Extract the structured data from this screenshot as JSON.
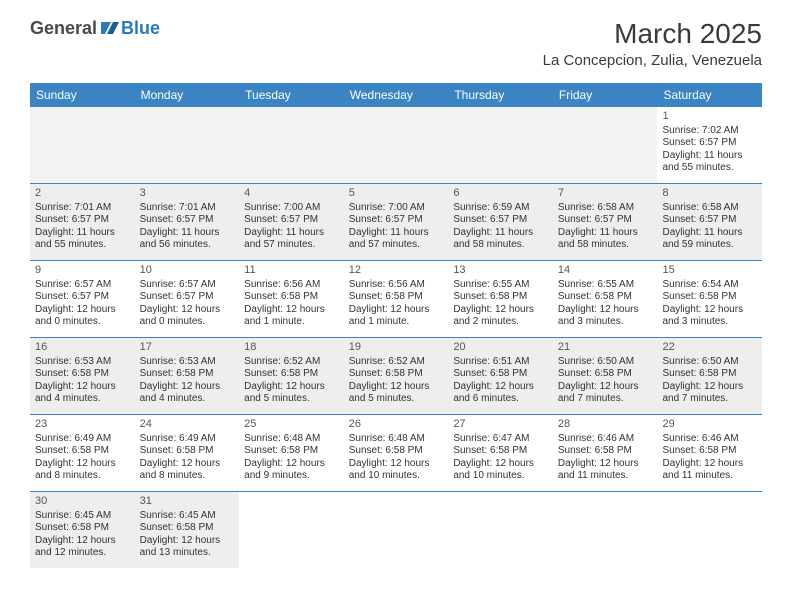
{
  "logo": {
    "part1": "General",
    "part2": "Blue"
  },
  "title": "March 2025",
  "location": "La Concepcion, Zulia, Venezuela",
  "colors": {
    "header_bg": "#3b84c4",
    "header_text": "#ffffff",
    "border": "#3b84c4",
    "empty_bg": "#f2f2f2",
    "shaded_bg": "#eeeeee",
    "text": "#333333",
    "logo_gray": "#4a4a4a",
    "logo_blue": "#2a7abf"
  },
  "dayHeaders": [
    "Sunday",
    "Monday",
    "Tuesday",
    "Wednesday",
    "Thursday",
    "Friday",
    "Saturday"
  ],
  "weeks": [
    [
      {
        "empty": true
      },
      {
        "empty": true
      },
      {
        "empty": true
      },
      {
        "empty": true
      },
      {
        "empty": true
      },
      {
        "empty": true
      },
      {
        "num": "1",
        "sunrise": "Sunrise: 7:02 AM",
        "sunset": "Sunset: 6:57 PM",
        "daylight": "Daylight: 11 hours and 55 minutes."
      }
    ],
    [
      {
        "num": "2",
        "shaded": true,
        "sunrise": "Sunrise: 7:01 AM",
        "sunset": "Sunset: 6:57 PM",
        "daylight": "Daylight: 11 hours and 55 minutes."
      },
      {
        "num": "3",
        "shaded": true,
        "sunrise": "Sunrise: 7:01 AM",
        "sunset": "Sunset: 6:57 PM",
        "daylight": "Daylight: 11 hours and 56 minutes."
      },
      {
        "num": "4",
        "shaded": true,
        "sunrise": "Sunrise: 7:00 AM",
        "sunset": "Sunset: 6:57 PM",
        "daylight": "Daylight: 11 hours and 57 minutes."
      },
      {
        "num": "5",
        "shaded": true,
        "sunrise": "Sunrise: 7:00 AM",
        "sunset": "Sunset: 6:57 PM",
        "daylight": "Daylight: 11 hours and 57 minutes."
      },
      {
        "num": "6",
        "shaded": true,
        "sunrise": "Sunrise: 6:59 AM",
        "sunset": "Sunset: 6:57 PM",
        "daylight": "Daylight: 11 hours and 58 minutes."
      },
      {
        "num": "7",
        "shaded": true,
        "sunrise": "Sunrise: 6:58 AM",
        "sunset": "Sunset: 6:57 PM",
        "daylight": "Daylight: 11 hours and 58 minutes."
      },
      {
        "num": "8",
        "shaded": true,
        "sunrise": "Sunrise: 6:58 AM",
        "sunset": "Sunset: 6:57 PM",
        "daylight": "Daylight: 11 hours and 59 minutes."
      }
    ],
    [
      {
        "num": "9",
        "sunrise": "Sunrise: 6:57 AM",
        "sunset": "Sunset: 6:57 PM",
        "daylight": "Daylight: 12 hours and 0 minutes."
      },
      {
        "num": "10",
        "sunrise": "Sunrise: 6:57 AM",
        "sunset": "Sunset: 6:57 PM",
        "daylight": "Daylight: 12 hours and 0 minutes."
      },
      {
        "num": "11",
        "sunrise": "Sunrise: 6:56 AM",
        "sunset": "Sunset: 6:58 PM",
        "daylight": "Daylight: 12 hours and 1 minute."
      },
      {
        "num": "12",
        "sunrise": "Sunrise: 6:56 AM",
        "sunset": "Sunset: 6:58 PM",
        "daylight": "Daylight: 12 hours and 1 minute."
      },
      {
        "num": "13",
        "sunrise": "Sunrise: 6:55 AM",
        "sunset": "Sunset: 6:58 PM",
        "daylight": "Daylight: 12 hours and 2 minutes."
      },
      {
        "num": "14",
        "sunrise": "Sunrise: 6:55 AM",
        "sunset": "Sunset: 6:58 PM",
        "daylight": "Daylight: 12 hours and 3 minutes."
      },
      {
        "num": "15",
        "sunrise": "Sunrise: 6:54 AM",
        "sunset": "Sunset: 6:58 PM",
        "daylight": "Daylight: 12 hours and 3 minutes."
      }
    ],
    [
      {
        "num": "16",
        "shaded": true,
        "sunrise": "Sunrise: 6:53 AM",
        "sunset": "Sunset: 6:58 PM",
        "daylight": "Daylight: 12 hours and 4 minutes."
      },
      {
        "num": "17",
        "shaded": true,
        "sunrise": "Sunrise: 6:53 AM",
        "sunset": "Sunset: 6:58 PM",
        "daylight": "Daylight: 12 hours and 4 minutes."
      },
      {
        "num": "18",
        "shaded": true,
        "sunrise": "Sunrise: 6:52 AM",
        "sunset": "Sunset: 6:58 PM",
        "daylight": "Daylight: 12 hours and 5 minutes."
      },
      {
        "num": "19",
        "shaded": true,
        "sunrise": "Sunrise: 6:52 AM",
        "sunset": "Sunset: 6:58 PM",
        "daylight": "Daylight: 12 hours and 5 minutes."
      },
      {
        "num": "20",
        "shaded": true,
        "sunrise": "Sunrise: 6:51 AM",
        "sunset": "Sunset: 6:58 PM",
        "daylight": "Daylight: 12 hours and 6 minutes."
      },
      {
        "num": "21",
        "shaded": true,
        "sunrise": "Sunrise: 6:50 AM",
        "sunset": "Sunset: 6:58 PM",
        "daylight": "Daylight: 12 hours and 7 minutes."
      },
      {
        "num": "22",
        "shaded": true,
        "sunrise": "Sunrise: 6:50 AM",
        "sunset": "Sunset: 6:58 PM",
        "daylight": "Daylight: 12 hours and 7 minutes."
      }
    ],
    [
      {
        "num": "23",
        "sunrise": "Sunrise: 6:49 AM",
        "sunset": "Sunset: 6:58 PM",
        "daylight": "Daylight: 12 hours and 8 minutes."
      },
      {
        "num": "24",
        "sunrise": "Sunrise: 6:49 AM",
        "sunset": "Sunset: 6:58 PM",
        "daylight": "Daylight: 12 hours and 8 minutes."
      },
      {
        "num": "25",
        "sunrise": "Sunrise: 6:48 AM",
        "sunset": "Sunset: 6:58 PM",
        "daylight": "Daylight: 12 hours and 9 minutes."
      },
      {
        "num": "26",
        "sunrise": "Sunrise: 6:48 AM",
        "sunset": "Sunset: 6:58 PM",
        "daylight": "Daylight: 12 hours and 10 minutes."
      },
      {
        "num": "27",
        "sunrise": "Sunrise: 6:47 AM",
        "sunset": "Sunset: 6:58 PM",
        "daylight": "Daylight: 12 hours and 10 minutes."
      },
      {
        "num": "28",
        "sunrise": "Sunrise: 6:46 AM",
        "sunset": "Sunset: 6:58 PM",
        "daylight": "Daylight: 12 hours and 11 minutes."
      },
      {
        "num": "29",
        "sunrise": "Sunrise: 6:46 AM",
        "sunset": "Sunset: 6:58 PM",
        "daylight": "Daylight: 12 hours and 11 minutes."
      }
    ],
    [
      {
        "num": "30",
        "shaded": true,
        "sunrise": "Sunrise: 6:45 AM",
        "sunset": "Sunset: 6:58 PM",
        "daylight": "Daylight: 12 hours and 12 minutes."
      },
      {
        "num": "31",
        "shaded": true,
        "sunrise": "Sunrise: 6:45 AM",
        "sunset": "Sunset: 6:58 PM",
        "daylight": "Daylight: 12 hours and 13 minutes."
      },
      {
        "blank": true
      },
      {
        "blank": true
      },
      {
        "blank": true
      },
      {
        "blank": true
      },
      {
        "blank": true
      }
    ]
  ]
}
